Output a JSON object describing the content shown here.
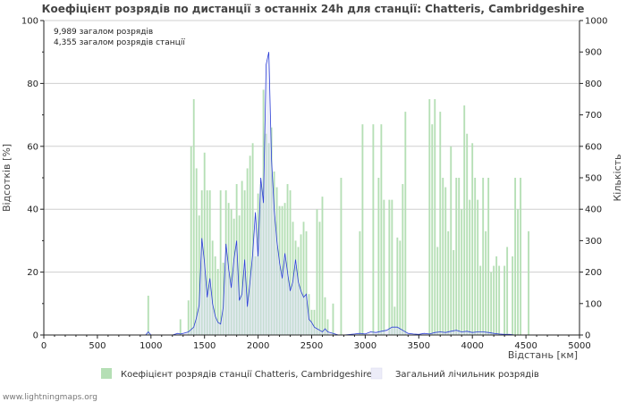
{
  "chart_data": {
    "type": "bar",
    "title": "Коефіцієнт розрядів по дистанції з останніх 24h для станції: Chatteris, Cambridgeshire",
    "annotations": [
      "9,989 загалом розрядів",
      "4,355 загалом розрядів станції"
    ],
    "xlabel": "Відстань   [км]",
    "ylabel_left": "Відсотків   [%]",
    "ylabel_right": "Кількість",
    "xlim": [
      0,
      5000
    ],
    "ylim_left": [
      0,
      100
    ],
    "ylim_right": [
      0,
      1000
    ],
    "x_ticks": [
      0,
      500,
      1000,
      1500,
      2000,
      2500,
      3000,
      3500,
      4000,
      4500,
      5000
    ],
    "y_left_ticks": [
      0,
      20,
      40,
      60,
      80,
      100
    ],
    "y_right_ticks": [
      0,
      100,
      200,
      300,
      400,
      500,
      600,
      700,
      800,
      900,
      1000
    ],
    "bar_width_km": 25,
    "series": [
      {
        "name": "Коефіцієнт розрядів станції Chatteris, Cambridgeshire",
        "axis": "left",
        "color": "#b5dfb5",
        "points": [
          [
            975,
            12.5
          ],
          [
            1275,
            5
          ],
          [
            1350,
            11
          ],
          [
            1375,
            60
          ],
          [
            1400,
            75
          ],
          [
            1425,
            53
          ],
          [
            1450,
            38
          ],
          [
            1475,
            46
          ],
          [
            1500,
            58
          ],
          [
            1525,
            46
          ],
          [
            1550,
            46
          ],
          [
            1575,
            30
          ],
          [
            1600,
            25
          ],
          [
            1625,
            21
          ],
          [
            1650,
            46
          ],
          [
            1675,
            23
          ],
          [
            1700,
            46
          ],
          [
            1725,
            42
          ],
          [
            1750,
            40
          ],
          [
            1775,
            37
          ],
          [
            1800,
            48
          ],
          [
            1825,
            38
          ],
          [
            1850,
            49
          ],
          [
            1875,
            46
          ],
          [
            1900,
            53
          ],
          [
            1925,
            57
          ],
          [
            1950,
            61
          ],
          [
            1975,
            25
          ],
          [
            2000,
            45
          ],
          [
            2025,
            48
          ],
          [
            2050,
            78
          ],
          [
            2075,
            64
          ],
          [
            2100,
            61
          ],
          [
            2125,
            66
          ],
          [
            2150,
            52
          ],
          [
            2175,
            47
          ],
          [
            2200,
            41
          ],
          [
            2225,
            41
          ],
          [
            2250,
            42
          ],
          [
            2275,
            48
          ],
          [
            2300,
            46
          ],
          [
            2325,
            36
          ],
          [
            2350,
            30
          ],
          [
            2375,
            28
          ],
          [
            2400,
            32
          ],
          [
            2425,
            36
          ],
          [
            2450,
            33
          ],
          [
            2475,
            13
          ],
          [
            2500,
            8
          ],
          [
            2525,
            8
          ],
          [
            2550,
            40
          ],
          [
            2575,
            36
          ],
          [
            2600,
            44
          ],
          [
            2625,
            12
          ],
          [
            2650,
            5
          ],
          [
            2700,
            10
          ],
          [
            2775,
            50
          ],
          [
            2950,
            33
          ],
          [
            2975,
            67
          ],
          [
            3075,
            67
          ],
          [
            3125,
            50
          ],
          [
            3150,
            67
          ],
          [
            3175,
            43
          ],
          [
            3225,
            43
          ],
          [
            3250,
            43
          ],
          [
            3275,
            9
          ],
          [
            3300,
            31
          ],
          [
            3325,
            30
          ],
          [
            3350,
            48
          ],
          [
            3375,
            71
          ],
          [
            3600,
            75
          ],
          [
            3625,
            67
          ],
          [
            3650,
            75
          ],
          [
            3675,
            28
          ],
          [
            3700,
            71
          ],
          [
            3725,
            50
          ],
          [
            3750,
            47
          ],
          [
            3775,
            33
          ],
          [
            3800,
            60
          ],
          [
            3825,
            27
          ],
          [
            3850,
            50
          ],
          [
            3875,
            50
          ],
          [
            3900,
            40
          ],
          [
            3925,
            73
          ],
          [
            3950,
            64
          ],
          [
            3975,
            43
          ],
          [
            4000,
            61
          ],
          [
            4025,
            50
          ],
          [
            4050,
            43
          ],
          [
            4075,
            22
          ],
          [
            4100,
            50
          ],
          [
            4125,
            33
          ],
          [
            4150,
            50
          ],
          [
            4175,
            20
          ],
          [
            4200,
            22
          ],
          [
            4225,
            25
          ],
          [
            4250,
            22
          ],
          [
            4300,
            22
          ],
          [
            4325,
            28
          ],
          [
            4375,
            25
          ],
          [
            4400,
            50
          ],
          [
            4425,
            40
          ],
          [
            4450,
            50
          ],
          [
            4525,
            33
          ]
        ]
      },
      {
        "name": "Загальний лічильник розрядів",
        "axis": "right",
        "color": "#2c3fd6",
        "x": [
          900,
          950,
          975,
          1000,
          1050,
          1100,
          1150,
          1200,
          1250,
          1275,
          1300,
          1350,
          1400,
          1425,
          1450,
          1475,
          1500,
          1525,
          1550,
          1575,
          1600,
          1625,
          1650,
          1675,
          1700,
          1725,
          1750,
          1775,
          1800,
          1825,
          1850,
          1875,
          1900,
          1925,
          1950,
          1975,
          2000,
          2025,
          2050,
          2075,
          2100,
          2125,
          2150,
          2175,
          2200,
          2225,
          2250,
          2275,
          2300,
          2325,
          2350,
          2375,
          2400,
          2425,
          2450,
          2475,
          2500,
          2525,
          2550,
          2575,
          2600,
          2625,
          2650,
          2700,
          2750,
          2800,
          2900,
          2950,
          3000,
          3050,
          3100,
          3150,
          3200,
          3250,
          3300,
          3325,
          3350,
          3400,
          3450,
          3500,
          3550,
          3600,
          3650,
          3700,
          3750,
          3800,
          3850,
          3900,
          3950,
          4000,
          4050,
          4100,
          4150,
          4200,
          4250,
          4300,
          4350,
          4400,
          4450,
          4500
        ],
        "values": [
          0,
          0,
          10,
          0,
          0,
          0,
          0,
          0,
          5,
          3,
          5,
          10,
          25,
          55,
          95,
          308,
          230,
          120,
          180,
          100,
          60,
          40,
          35,
          90,
          290,
          210,
          150,
          240,
          300,
          110,
          130,
          240,
          90,
          170,
          260,
          390,
          250,
          500,
          420,
          860,
          900,
          560,
          400,
          300,
          230,
          180,
          260,
          200,
          140,
          170,
          240,
          170,
          140,
          120,
          130,
          50,
          40,
          25,
          20,
          15,
          10,
          20,
          10,
          5,
          0,
          0,
          3,
          5,
          3,
          10,
          8,
          12,
          15,
          25,
          25,
          20,
          15,
          5,
          3,
          2,
          5,
          3,
          8,
          10,
          8,
          12,
          15,
          10,
          12,
          8,
          10,
          10,
          8,
          5,
          3,
          2,
          2,
          0,
          0,
          0
        ]
      }
    ],
    "legend": [
      "Коефіцієнт розрядів станції Chatteris, Cambridgeshire",
      "Загальний лічильник розрядів"
    ],
    "legend_position": "bottom"
  },
  "footer": "www.lightningmaps.org"
}
